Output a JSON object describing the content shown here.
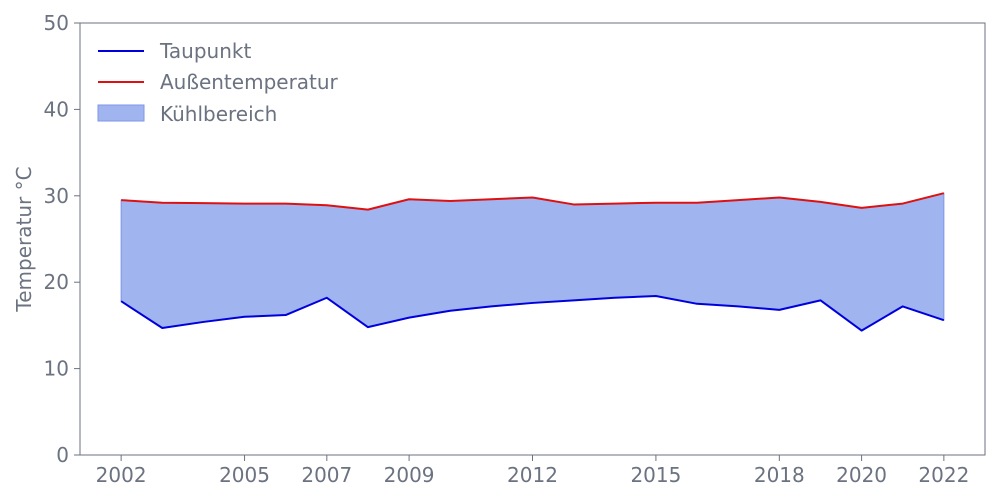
{
  "chart_data": {
    "type": "area",
    "title": "",
    "xlabel": "",
    "ylabel": "Temperatur °C",
    "x": [
      2002,
      2003,
      2004,
      2005,
      2006,
      2007,
      2008,
      2009,
      2010,
      2011,
      2012,
      2013,
      2014,
      2015,
      2016,
      2017,
      2018,
      2019,
      2020,
      2021,
      2022
    ],
    "xticks": [
      2002,
      2005,
      2007,
      2009,
      2012,
      2015,
      2018,
      2020,
      2022
    ],
    "yticks": [
      0,
      10,
      20,
      30,
      40,
      50
    ],
    "xlim": [
      2001,
      2023
    ],
    "ylim": [
      0,
      50
    ],
    "grid": false,
    "legend_position": "top-left",
    "series": [
      {
        "name": "Taupunkt",
        "color": "#0000dd",
        "values": [
          17.8,
          14.7,
          15.4,
          16.0,
          16.2,
          18.2,
          14.8,
          15.9,
          16.7,
          17.2,
          17.6,
          17.9,
          18.2,
          18.4,
          17.5,
          17.2,
          16.8,
          17.9,
          14.4,
          17.2,
          15.6
        ]
      },
      {
        "name": "Außentemperatur",
        "color": "#dd1111",
        "values": [
          29.5,
          29.2,
          29.15,
          29.1,
          29.1,
          28.9,
          28.4,
          29.6,
          29.4,
          29.6,
          29.8,
          29.0,
          29.1,
          29.2,
          29.2,
          29.5,
          29.8,
          29.3,
          28.6,
          29.1,
          30.3
        ]
      }
    ],
    "band": {
      "name": "Kühlbereich",
      "color": "#a0b4ef",
      "edge_color": "#7f96e8"
    }
  }
}
